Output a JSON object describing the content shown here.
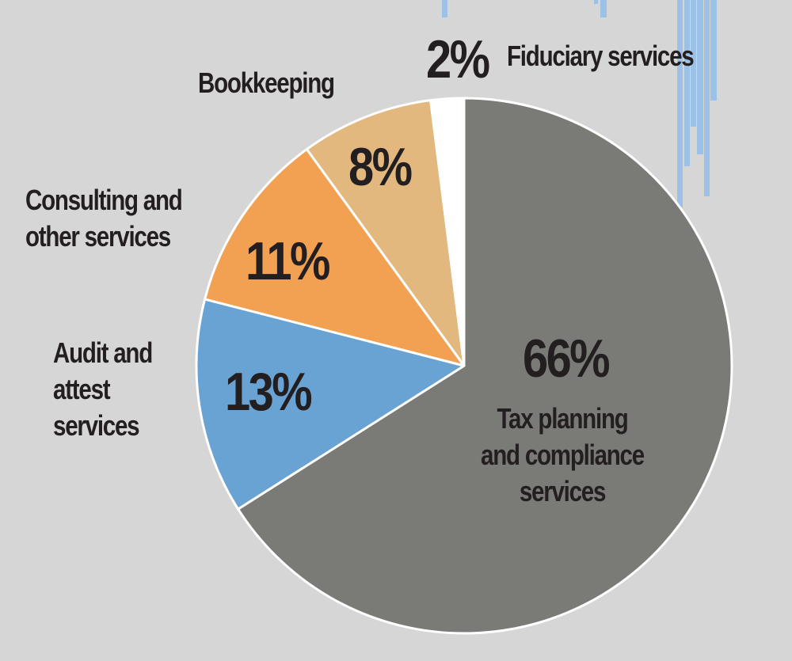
{
  "chart_data": {
    "type": "pie",
    "title": "",
    "slices": [
      {
        "label": "Tax planning and compliance services",
        "label_lines": [
          "Tax planning",
          "and compliance",
          "services"
        ],
        "value": 66,
        "pct_label": "66%",
        "color": "#7a7a76"
      },
      {
        "label": "Audit and attest services",
        "label_lines": [
          "Audit and",
          "attest",
          "services"
        ],
        "value": 13,
        "pct_label": "13%",
        "color": "#69a3d4"
      },
      {
        "label": "Consulting and other services",
        "label_lines": [
          "Consulting and",
          "other services"
        ],
        "value": 11,
        "pct_label": "11%",
        "color": "#f2a052"
      },
      {
        "label": "Bookkeeping",
        "label_lines": [
          "Bookkeeping"
        ],
        "value": 8,
        "pct_label": "8%",
        "color": "#e2b87f"
      },
      {
        "label": "Fiduciary services",
        "label_lines": [
          "Fiduciary services"
        ],
        "value": 2,
        "pct_label": "2%",
        "color": "#ffffff"
      }
    ],
    "start_angle": "top, clockwise"
  }
}
